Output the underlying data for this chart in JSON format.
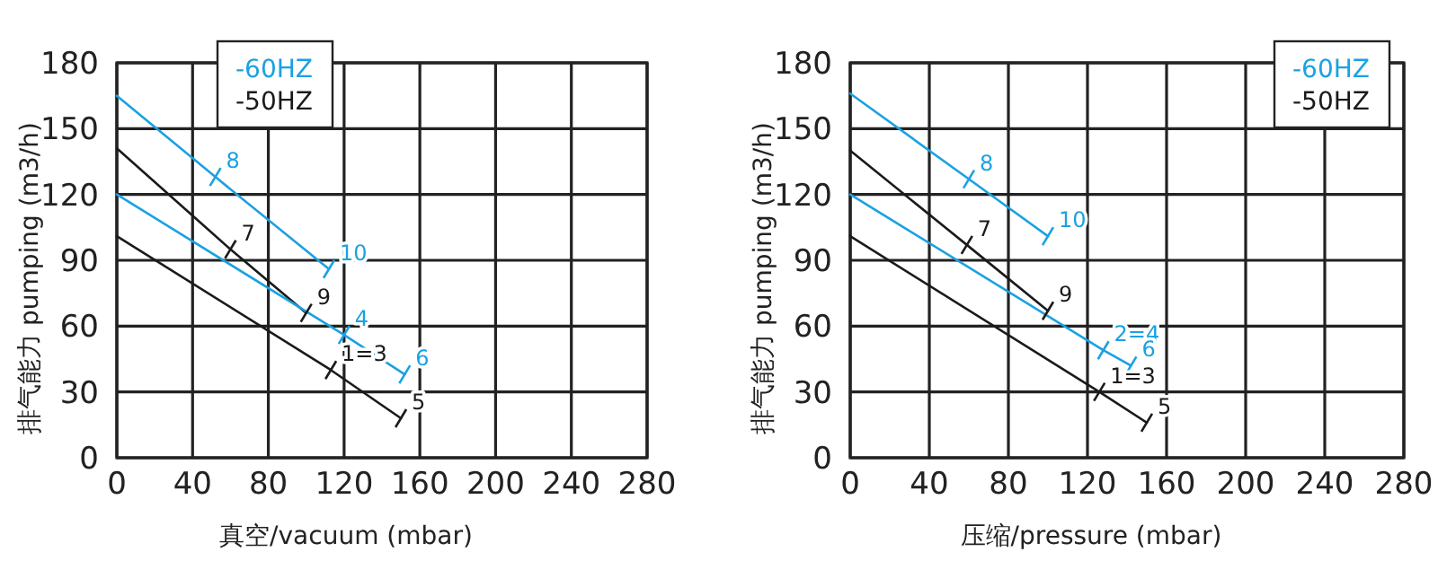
{
  "chart_data": [
    {
      "type": "line",
      "xlabel": "真空/vacuum (mbar)",
      "ylabel": "排气能力 pumping (m3/h)",
      "xlim": [
        0,
        280
      ],
      "ylim": [
        0,
        180
      ],
      "xticks": [
        0,
        40,
        80,
        120,
        160,
        200,
        240,
        280
      ],
      "yticks": [
        0,
        30,
        60,
        90,
        120,
        150,
        180
      ],
      "grid": true,
      "legend": "top left",
      "series": [
        {
          "name": "-60HZ",
          "color": "#1ba1e2",
          "x": [
            0,
            52,
            112
          ],
          "values": [
            165,
            128,
            86
          ]
        },
        {
          "name": "-50HZ",
          "color": "#1a1a1a",
          "x": [
            0,
            60,
            100
          ],
          "values": [
            141,
            95,
            66
          ]
        },
        {
          "color": "#1ba1e2",
          "x": [
            0,
            120,
            152
          ],
          "values": [
            120,
            56,
            38
          ]
        },
        {
          "color": "#1a1a1a",
          "x": [
            0,
            113,
            150
          ],
          "values": [
            101,
            40,
            18
          ]
        }
      ],
      "annotations": [
        {
          "text": "8",
          "x": 52,
          "y": 128
        },
        {
          "text": "10",
          "x": 112,
          "y": 86
        },
        {
          "text": "7",
          "x": 60,
          "y": 95
        },
        {
          "text": "9",
          "x": 100,
          "y": 66
        },
        {
          "text": "4",
          "x": 120,
          "y": 56
        },
        {
          "text": "6",
          "x": 152,
          "y": 38
        },
        {
          "text": "1=3",
          "x": 113,
          "y": 40
        },
        {
          "text": "5",
          "x": 150,
          "y": 18
        }
      ]
    },
    {
      "type": "line",
      "xlabel": "压缩/pressure (mbar)",
      "ylabel": "排气能力 pumping (m3/h)",
      "xlim": [
        0,
        280
      ],
      "ylim": [
        0,
        180
      ],
      "xticks": [
        0,
        40,
        80,
        120,
        160,
        200,
        240,
        280
      ],
      "yticks": [
        0,
        30,
        60,
        90,
        120,
        150,
        180
      ],
      "grid": true,
      "legend": "top right",
      "series": [
        {
          "name": "-60HZ",
          "color": "#1ba1e2",
          "x": [
            0,
            60,
            100
          ],
          "values": [
            166,
            127,
            101
          ]
        },
        {
          "name": "-50HZ",
          "color": "#1a1a1a",
          "x": [
            0,
            59,
            100
          ],
          "values": [
            140,
            97,
            67
          ]
        },
        {
          "color": "#1ba1e2",
          "x": [
            0,
            128,
            142
          ],
          "values": [
            120,
            49,
            42
          ]
        },
        {
          "color": "#1a1a1a",
          "x": [
            0,
            126,
            150
          ],
          "values": [
            101,
            30,
            16
          ]
        }
      ],
      "annotations": [
        {
          "text": "8",
          "x": 60,
          "y": 127
        },
        {
          "text": "10",
          "x": 100,
          "y": 101
        },
        {
          "text": "7",
          "x": 59,
          "y": 97
        },
        {
          "text": "9",
          "x": 100,
          "y": 67
        },
        {
          "text": "2=4",
          "x": 128,
          "y": 49
        },
        {
          "text": "6",
          "x": 142,
          "y": 42
        },
        {
          "text": "1=3",
          "x": 126,
          "y": 30
        },
        {
          "text": "5",
          "x": 150,
          "y": 16
        }
      ]
    }
  ]
}
